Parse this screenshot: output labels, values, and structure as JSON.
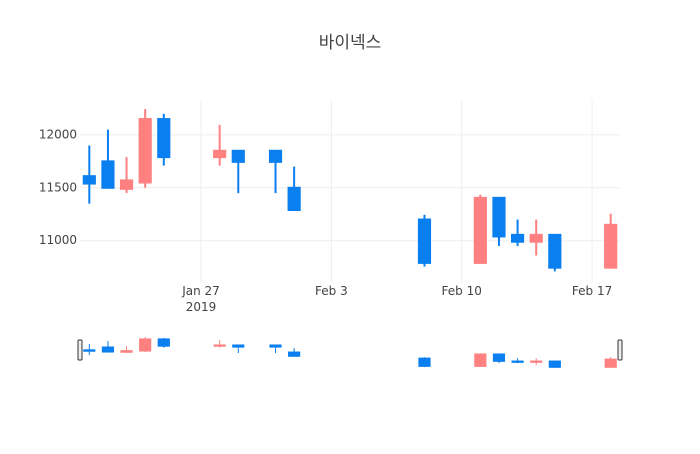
{
  "chart_data": {
    "type": "candlestick",
    "title": "바이넥스",
    "x": [
      "2019-01-21",
      "2019-01-22",
      "2019-01-23",
      "2019-01-24",
      "2019-01-25",
      "2019-01-28",
      "2019-01-29",
      "2019-01-31",
      "2019-02-01",
      "2019-02-08",
      "2019-02-11",
      "2019-02-12",
      "2019-02-13",
      "2019-02-14",
      "2019-02-15",
      "2019-02-18"
    ],
    "open": [
      11610,
      11750,
      11490,
      11550,
      12150,
      11790,
      11850,
      11850,
      11500,
      11200,
      10790,
      11405,
      11055,
      10990,
      11055,
      10745
    ],
    "high": [
      11900,
      12050,
      11790,
      12245,
      12200,
      12095,
      11850,
      11850,
      11700,
      11245,
      11435,
      11405,
      11200,
      11200,
      11055,
      11255
    ],
    "low": [
      11350,
      11500,
      11450,
      11500,
      11710,
      11710,
      11450,
      11450,
      11290,
      10755,
      10790,
      10950,
      10950,
      10860,
      10710,
      10745
    ],
    "close": [
      11540,
      11500,
      11570,
      12150,
      11790,
      11850,
      11745,
      11745,
      11290,
      10790,
      11405,
      11040,
      10990,
      11055,
      10745,
      11150
    ],
    "increasing_color": "#ff8080",
    "decreasing_color": "#0a7ff0",
    "xlim": [
      "2019-01-20 12:00",
      "2019-02-18 12:00"
    ],
    "xticks": [
      {
        "value": "2019-01-27",
        "label": "Jan 27\n2019"
      },
      {
        "value": "2019-02-03",
        "label": "Feb 3"
      },
      {
        "value": "2019-02-10",
        "label": "Feb 10"
      },
      {
        "value": "2019-02-17",
        "label": "Feb 17"
      }
    ],
    "ylim": [
      10600,
      12330
    ],
    "yticks": [
      11000,
      11500,
      12000
    ],
    "grid": true,
    "rangeslider": true
  }
}
